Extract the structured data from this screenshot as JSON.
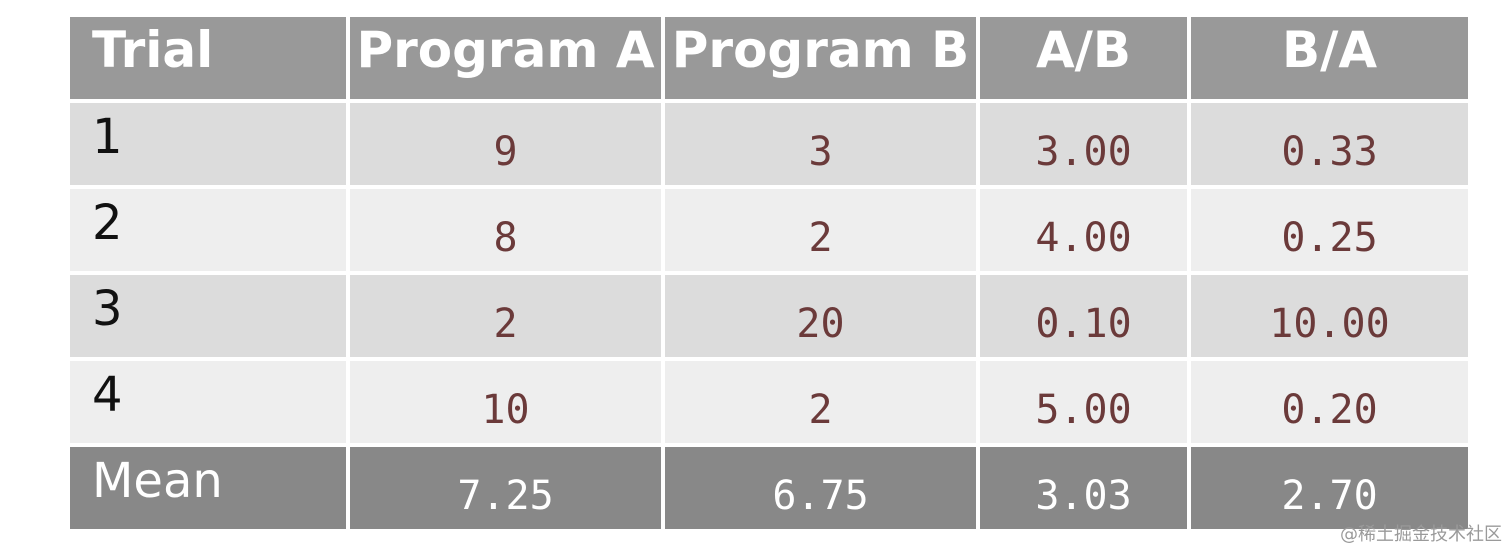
{
  "chart_data": {
    "type": "table",
    "columns": [
      "Trial",
      "Program A",
      "Program B",
      "A/B",
      "B/A"
    ],
    "rows": [
      [
        "1",
        "9",
        "3",
        "3.00",
        "0.33"
      ],
      [
        "2",
        "8",
        "2",
        "4.00",
        "0.25"
      ],
      [
        "3",
        "2",
        "20",
        "0.10",
        "10.00"
      ],
      [
        "4",
        "10",
        "2",
        "5.00",
        "0.20"
      ]
    ],
    "mean": [
      "Mean",
      "7.25",
      "6.75",
      "3.03",
      "2.70"
    ]
  },
  "watermark": "@稀土掘金技术社区"
}
